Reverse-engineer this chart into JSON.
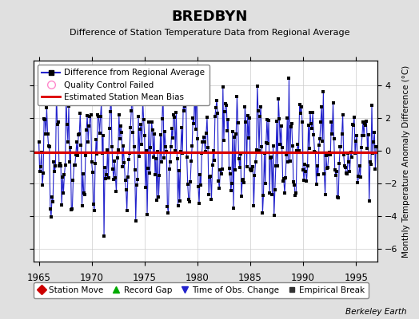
{
  "title": "BREDBYN",
  "subtitle": "Difference of Station Temperature Data from Regional Average",
  "ylabel": "Monthly Temperature Anomaly Difference (°C)",
  "xlim": [
    1964.5,
    1997.0
  ],
  "ylim": [
    -6.8,
    5.5
  ],
  "yticks": [
    -6,
    -4,
    -2,
    0,
    2,
    4
  ],
  "xticks": [
    1965,
    1970,
    1975,
    1980,
    1985,
    1990,
    1995
  ],
  "mean_bias": -0.1,
  "bg_color": "#e0e0e0",
  "plot_bg_color": "#ffffff",
  "line_color": "#2222cc",
  "marker_color": "#000000",
  "bias_color": "#dd0000",
  "grid_color": "#cccccc",
  "footer": "Berkeley Earth",
  "seed": 42,
  "start_year": 1965.0,
  "end_year": 1996.92,
  "seasonal_amp": 2.0,
  "noise_std": 1.3
}
